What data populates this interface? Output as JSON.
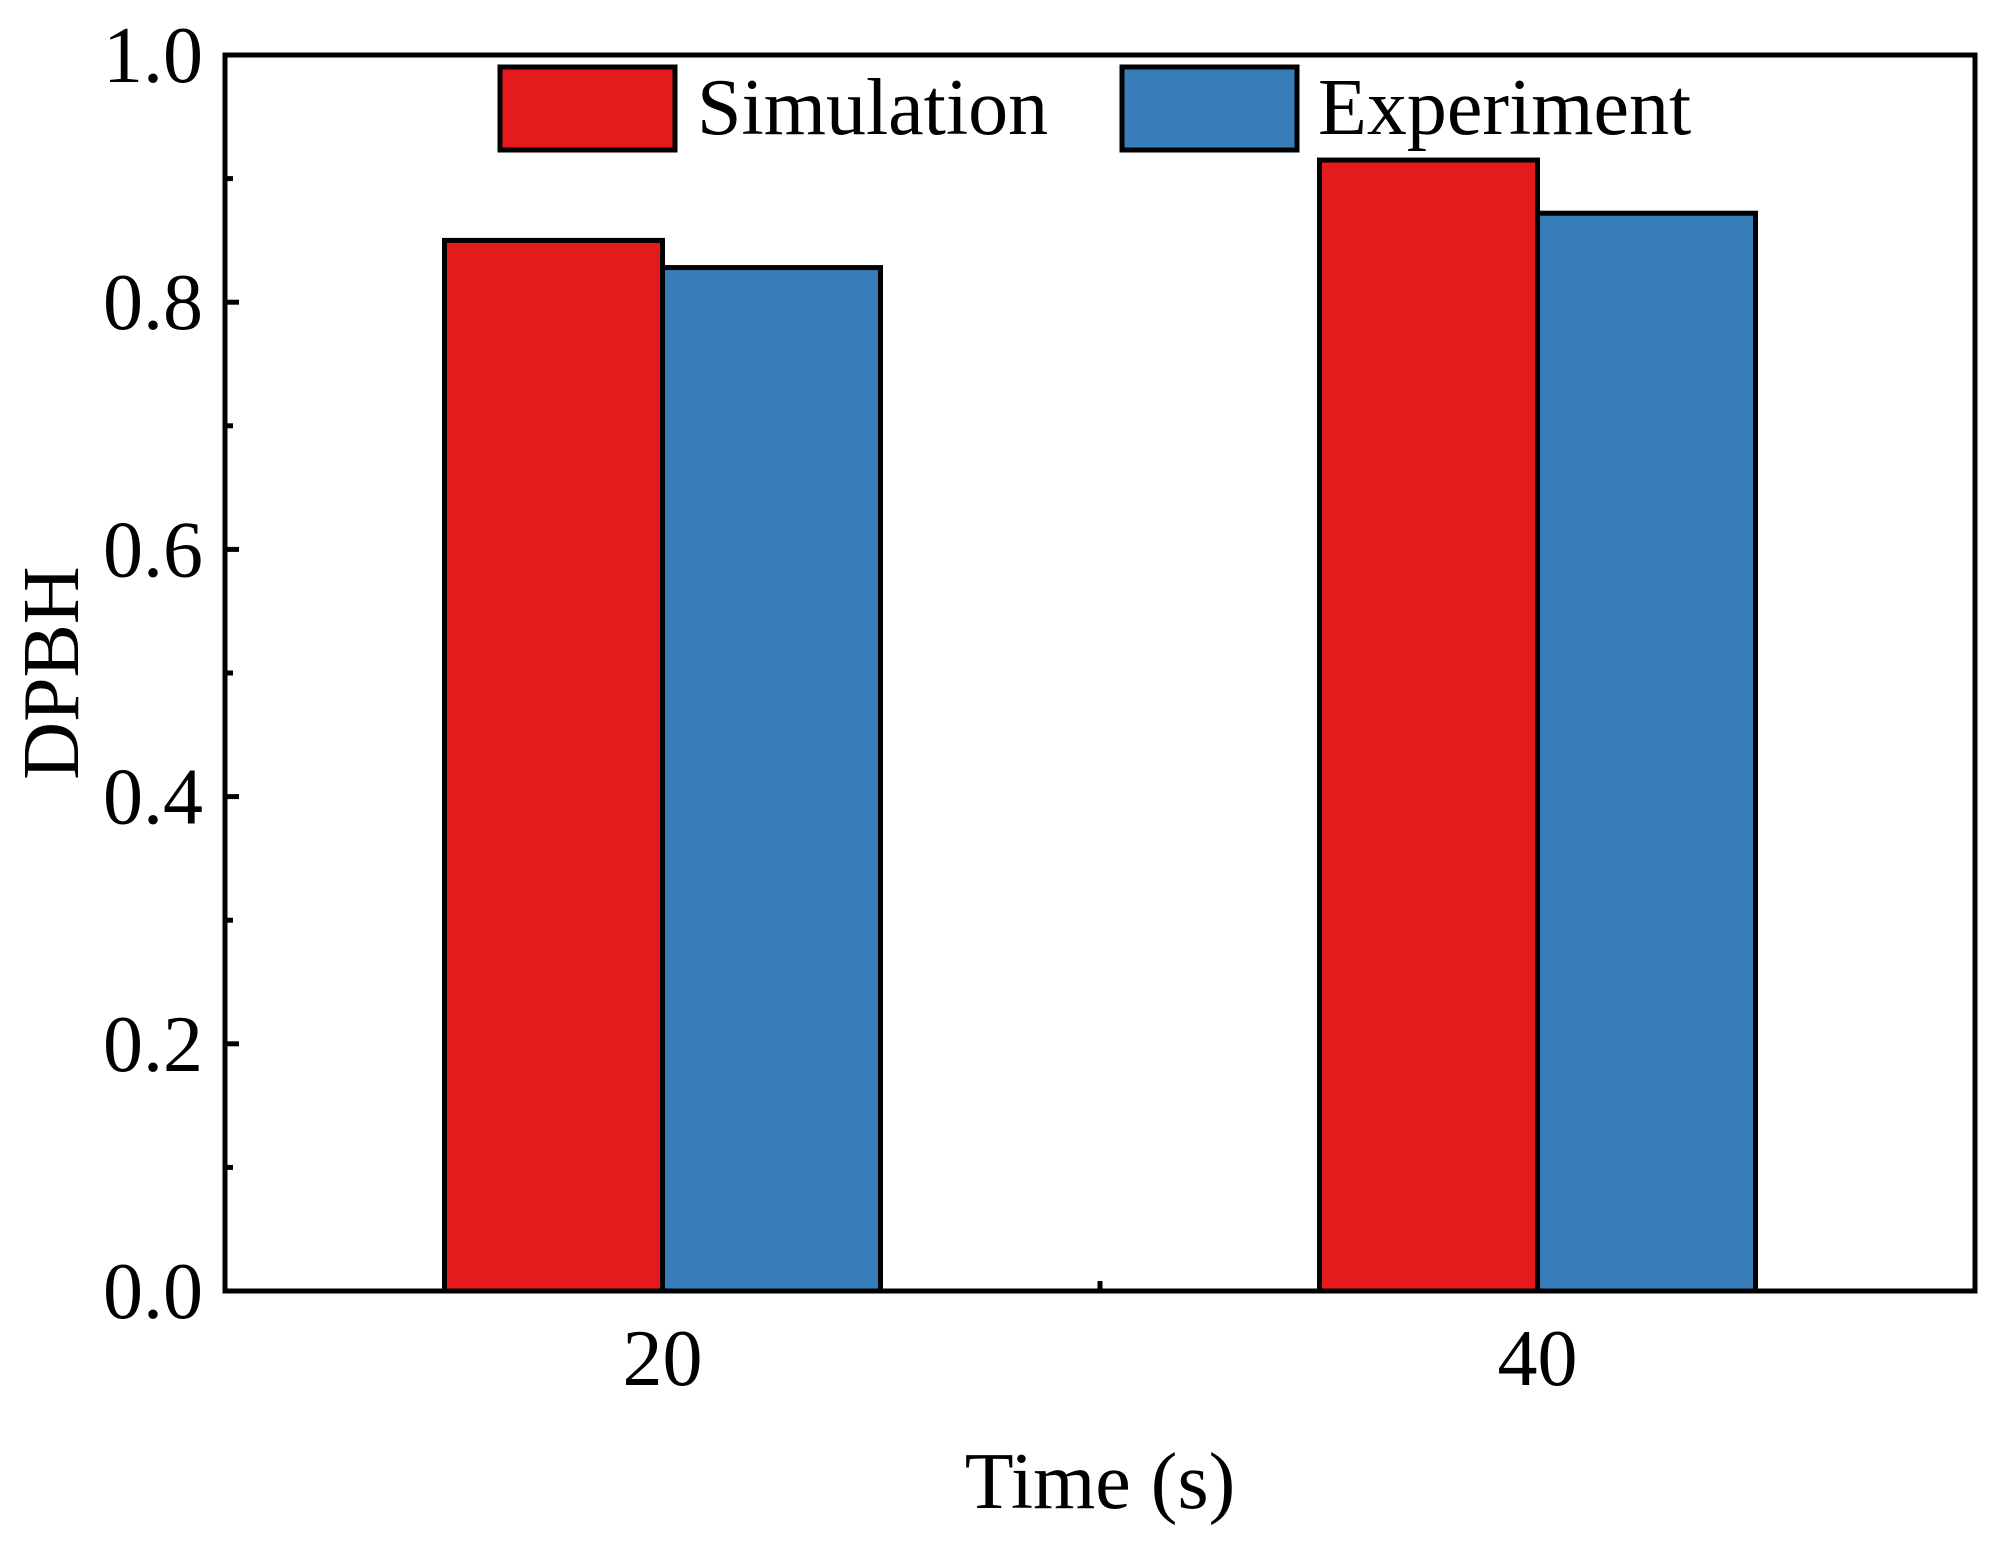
{
  "chart_data": {
    "type": "bar",
    "title": "",
    "xlabel": "Time (s)",
    "ylabel": "DPBH",
    "categories": [
      "20",
      "40"
    ],
    "series": [
      {
        "name": "Simulation",
        "color": "#e41a1c",
        "values": [
          0.85,
          0.915
        ]
      },
      {
        "name": "Experiment",
        "color": "#377eb8",
        "values": [
          0.828,
          0.872
        ]
      }
    ],
    "ylim": [
      0,
      1.0
    ],
    "yticks": [
      "0.0",
      "0.2",
      "0.4",
      "0.6",
      "0.8",
      "1.0"
    ],
    "ytick_values": [
      0,
      0.2,
      0.4,
      0.6,
      0.8,
      1.0
    ],
    "legend_position": "top",
    "grid": false
  }
}
